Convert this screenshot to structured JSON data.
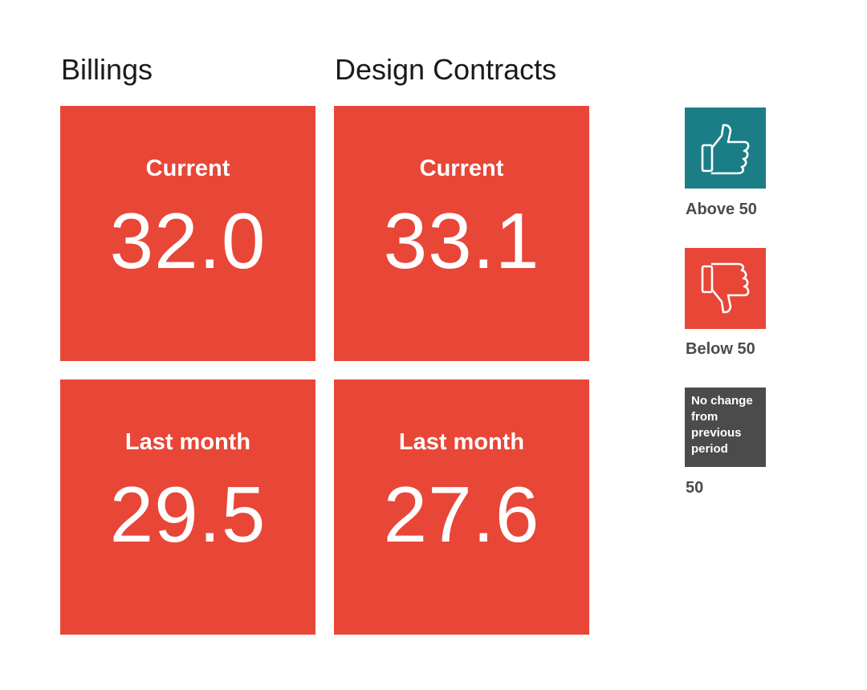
{
  "columns": [
    {
      "title": "Billings",
      "tiles": [
        {
          "label": "Current",
          "value": "32.0"
        },
        {
          "label": "Last month",
          "value": "29.5"
        }
      ]
    },
    {
      "title": "Design Contracts",
      "tiles": [
        {
          "label": "Current",
          "value": "33.1"
        },
        {
          "label": "Last month",
          "value": "27.6"
        }
      ]
    }
  ],
  "legend": {
    "above": {
      "icon": "thumbs-up-icon",
      "label": "Above 50",
      "color": "#1b7e86"
    },
    "below": {
      "icon": "thumbs-down-icon",
      "label": "Below 50",
      "color": "#e84637"
    },
    "no_change": {
      "box_text": "No change from previous period",
      "label": "50",
      "color": "#4b4b4b"
    }
  }
}
